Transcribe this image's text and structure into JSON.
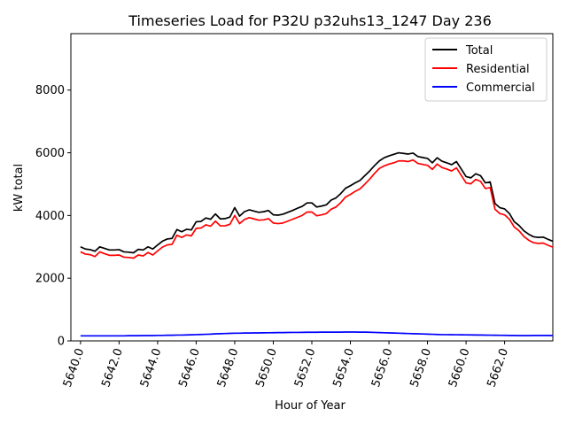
{
  "chart_data": {
    "type": "line",
    "title": "Timeseries Load for P32U p32uhs13_1247  Day 236",
    "xlabel": "Hour of Year",
    "ylabel": "kW total",
    "xlim": [
      5639.5,
      5664.5
    ],
    "ylim": [
      0,
      9800
    ],
    "xticks": [
      5640,
      5642,
      5644,
      5646,
      5648,
      5650,
      5652,
      5654,
      5656,
      5658,
      5660,
      5662
    ],
    "xtick_labels": [
      "5640.0",
      "5642.0",
      "5644.0",
      "5646.0",
      "5648.0",
      "5650.0",
      "5652.0",
      "5654.0",
      "5656.0",
      "5658.0",
      "5660.0",
      "5662.0"
    ],
    "yticks": [
      0,
      2000,
      4000,
      6000,
      8000
    ],
    "ytick_labels": [
      "0",
      "2000",
      "4000",
      "6000",
      "8000"
    ],
    "legend_position": "top-right",
    "x_start": 5640,
    "x_step": 0.25,
    "series": [
      {
        "name": "Total",
        "color": "#000000",
        "values": [
          3000,
          2930,
          2910,
          2860,
          3000,
          2950,
          2900,
          2900,
          2910,
          2840,
          2830,
          2810,
          2920,
          2900,
          3000,
          2930,
          3060,
          3180,
          3250,
          3270,
          3550,
          3480,
          3560,
          3540,
          3800,
          3810,
          3920,
          3880,
          4050,
          3890,
          3900,
          3950,
          4250,
          3980,
          4120,
          4180,
          4140,
          4100,
          4120,
          4160,
          4020,
          4010,
          4040,
          4100,
          4160,
          4230,
          4290,
          4400,
          4400,
          4270,
          4300,
          4340,
          4490,
          4560,
          4700,
          4870,
          4950,
          5040,
          5120,
          5270,
          5420,
          5590,
          5740,
          5840,
          5900,
          5950,
          6000,
          5980,
          5960,
          5990,
          5880,
          5850,
          5820,
          5680,
          5840,
          5730,
          5680,
          5620,
          5720,
          5480,
          5240,
          5200,
          5330,
          5270,
          5040,
          5070,
          4380,
          4250,
          4210,
          4060,
          3800,
          3680,
          3510,
          3400,
          3320,
          3300,
          3310,
          3240,
          3180
        ]
      },
      {
        "name": "Residential",
        "color": "#ff0000",
        "values": [
          2840,
          2770,
          2750,
          2690,
          2840,
          2780,
          2730,
          2730,
          2740,
          2670,
          2660,
          2640,
          2740,
          2710,
          2820,
          2740,
          2870,
          2990,
          3060,
          3080,
          3370,
          3300,
          3380,
          3350,
          3590,
          3600,
          3700,
          3660,
          3820,
          3670,
          3670,
          3720,
          4000,
          3740,
          3870,
          3930,
          3890,
          3850,
          3860,
          3900,
          3760,
          3740,
          3760,
          3820,
          3880,
          3940,
          4000,
          4110,
          4110,
          3990,
          4020,
          4060,
          4200,
          4270,
          4410,
          4590,
          4670,
          4770,
          4850,
          5000,
          5160,
          5340,
          5500,
          5580,
          5640,
          5680,
          5740,
          5740,
          5720,
          5770,
          5660,
          5630,
          5600,
          5470,
          5640,
          5530,
          5480,
          5420,
          5520,
          5280,
          5040,
          5010,
          5150,
          5090,
          4860,
          4890,
          4200,
          4060,
          4020,
          3880,
          3630,
          3510,
          3330,
          3210,
          3130,
          3110,
          3120,
          3050,
          2990
        ]
      },
      {
        "name": "Commercial",
        "color": "#0000ff",
        "values": [
          160,
          160,
          160,
          160,
          160,
          160,
          160,
          160,
          160,
          160,
          165,
          165,
          165,
          170,
          170,
          170,
          175,
          175,
          180,
          180,
          185,
          185,
          190,
          195,
          200,
          205,
          210,
          215,
          225,
          230,
          235,
          240,
          245,
          245,
          250,
          250,
          255,
          255,
          258,
          260,
          262,
          265,
          265,
          268,
          270,
          270,
          272,
          275,
          275,
          275,
          278,
          278,
          280,
          280,
          280,
          282,
          282,
          282,
          280,
          278,
          275,
          270,
          265,
          260,
          255,
          250,
          245,
          240,
          235,
          230,
          225,
          220,
          215,
          210,
          205,
          200,
          200,
          198,
          196,
          194,
          192,
          190,
          188,
          186,
          184,
          182,
          180,
          178,
          176,
          174,
          172,
          170,
          170,
          170,
          172,
          174,
          175,
          172,
          170
        ]
      }
    ]
  }
}
